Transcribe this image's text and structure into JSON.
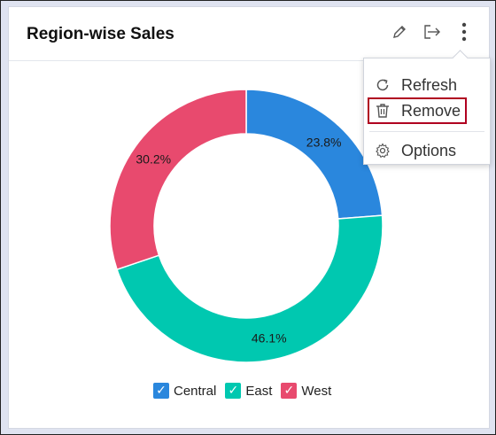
{
  "widget": {
    "title": "Region-wise Sales",
    "header_icons": [
      "pencil-icon",
      "export-icon",
      "more-vertical-icon"
    ]
  },
  "menu": {
    "items": [
      {
        "label": "Refresh",
        "icon": "refresh-icon"
      },
      {
        "label": "Remove",
        "icon": "trash-icon",
        "selected": true
      },
      {
        "label": "Options",
        "icon": "gear-icon"
      }
    ]
  },
  "colors": {
    "Central": "#2a87dd",
    "East": "#00c8b0",
    "West": "#e84a6e"
  },
  "chart_data": {
    "type": "pie",
    "donut": true,
    "categories": [
      "Central",
      "East",
      "West"
    ],
    "values": [
      23.8,
      46.1,
      30.2
    ],
    "data_labels": [
      "23.8%",
      "46.1%",
      "30.2%"
    ],
    "legend": [
      "Central",
      "East",
      "West"
    ],
    "legend_position": "bottom",
    "legend_checked": [
      true,
      true,
      true
    ]
  }
}
